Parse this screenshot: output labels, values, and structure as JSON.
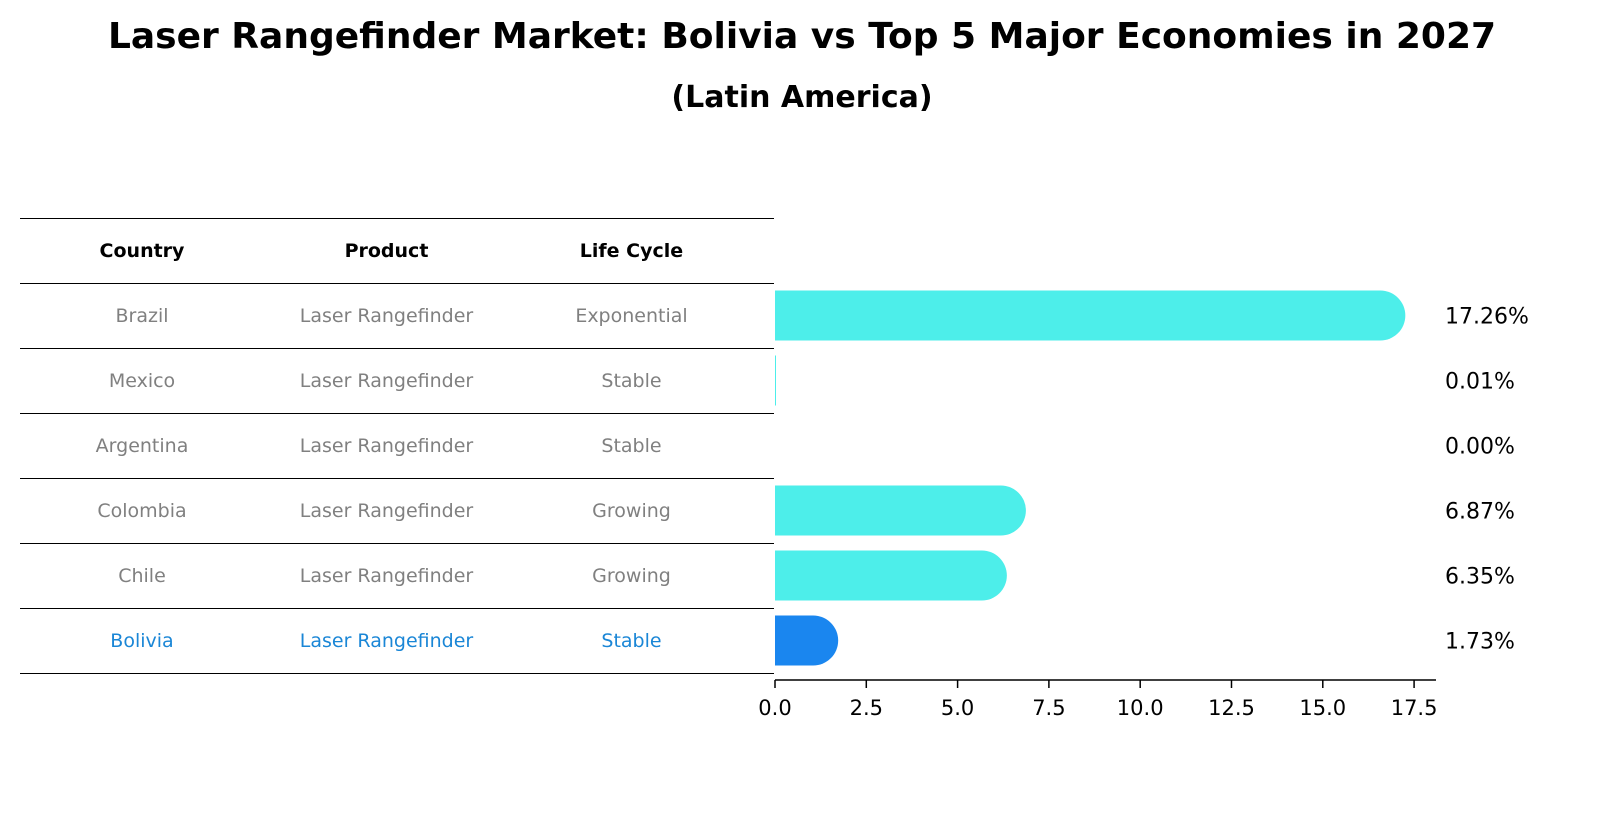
{
  "title": "Laser Rangefinder Market: Bolivia vs Top 5 Major Economies in 2027",
  "subtitle": "(Latin America)",
  "table": {
    "headers": [
      "Country",
      "Product",
      "Life Cycle"
    ],
    "rows": [
      [
        "Brazil",
        "Laser Rangefinder",
        "Exponential"
      ],
      [
        "Mexico",
        "Laser Rangefinder",
        "Stable"
      ],
      [
        "Argentina",
        "Laser Rangefinder",
        "Stable"
      ],
      [
        "Colombia",
        "Laser Rangefinder",
        "Growing"
      ],
      [
        "Chile",
        "Laser Rangefinder",
        "Growing"
      ],
      [
        "Bolivia",
        "Laser Rangefinder",
        "Stable"
      ]
    ],
    "highlight_row": 5,
    "highlight_color": "#1a86d6"
  },
  "chart_data": {
    "type": "bar",
    "orientation": "horizontal",
    "categories": [
      "Brazil",
      "Mexico",
      "Argentina",
      "Colombia",
      "Chile",
      "Bolivia"
    ],
    "values": [
      17.26,
      0.01,
      0.0,
      6.87,
      6.35,
      1.73
    ],
    "value_labels": [
      "17.26%",
      "0.01%",
      "0.00%",
      "6.87%",
      "6.35%",
      "1.73%"
    ],
    "xlim": [
      0,
      18.1
    ],
    "xticks": [
      "0.0",
      "2.5",
      "5.0",
      "7.5",
      "10.0",
      "12.5",
      "15.0",
      "17.5"
    ],
    "xtick_values": [
      0,
      2.5,
      5,
      7.5,
      10,
      12.5,
      15,
      17.5
    ],
    "bar_color": "#4deeea",
    "highlight_color": "#1a86ef",
    "highlight_index": 5,
    "grid": false
  }
}
